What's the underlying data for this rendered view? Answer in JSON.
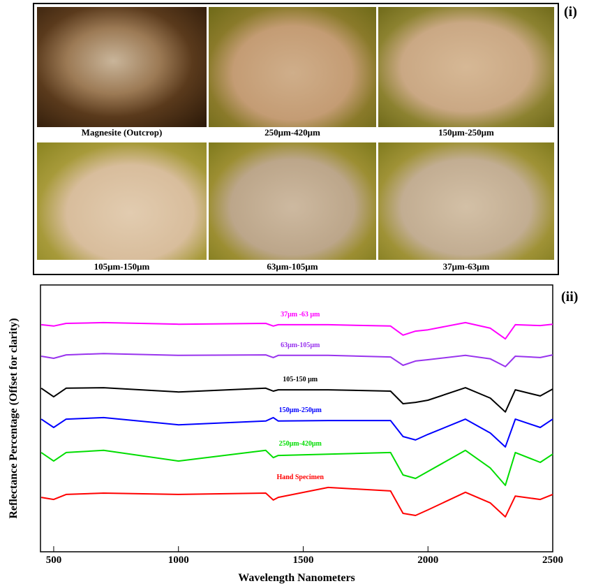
{
  "panel_labels": [
    "(i)",
    "(ii)"
  ],
  "photos": [
    {
      "caption": "Magnesite (Outcrop)"
    },
    {
      "caption": "250μm-420μm"
    },
    {
      "caption": "150μm-250μm"
    },
    {
      "caption": "105μm-150μm"
    },
    {
      "caption": "63μm-105μm"
    },
    {
      "caption": "37μm-63μm"
    }
  ],
  "chart_data": {
    "type": "line",
    "x_label": "Wavelength Nanometers",
    "y_label": "Reflectance Percentage (Offset for clarity)",
    "x": [
      450,
      500,
      550,
      700,
      1000,
      1350,
      1380,
      1400,
      1600,
      1850,
      1900,
      1950,
      2000,
      2150,
      2250,
      2310,
      2350,
      2450,
      2500
    ],
    "xlim": [
      447,
      2500
    ],
    "xticks": [
      500,
      1000,
      1500,
      2000,
      2500
    ],
    "ylim": [
      0,
      100
    ],
    "series": [
      {
        "name": "37μm -63 μm",
        "color": "#ff00ff",
        "values": [
          85.1,
          84.6,
          85.6,
          85.9,
          85.3,
          85.6,
          84.6,
          85.1,
          85.1,
          84.6,
          81.2,
          82.7,
          83.2,
          85.9,
          83.8,
          79.8,
          85.1,
          84.8,
          85.3
        ]
      },
      {
        "name": "63μm-105μm",
        "color": "#9933ee",
        "values": [
          73.3,
          72.5,
          73.8,
          74.3,
          73.6,
          73.8,
          72.8,
          73.6,
          73.6,
          73.0,
          69.9,
          71.5,
          72.0,
          73.6,
          72.3,
          69.4,
          73.3,
          72.8,
          73.8
        ]
      },
      {
        "name": "105-150 μm",
        "color": "#000000",
        "values": [
          61.3,
          58.1,
          61.3,
          61.5,
          59.9,
          61.3,
          60.2,
          60.7,
          60.7,
          60.2,
          55.5,
          56.0,
          56.8,
          61.5,
          57.6,
          52.4,
          60.7,
          58.4,
          61.0
        ]
      },
      {
        "name": "150μm-250μm",
        "color": "#0000ff",
        "values": [
          49.7,
          46.6,
          49.7,
          50.3,
          47.6,
          49.0,
          50.3,
          49.0,
          49.2,
          49.2,
          43.2,
          41.9,
          44.0,
          49.7,
          44.5,
          39.3,
          49.7,
          46.6,
          49.7
        ]
      },
      {
        "name": "250μm-420μm",
        "color": "#00dd00",
        "values": [
          37.2,
          34.0,
          37.2,
          38.0,
          34.0,
          38.0,
          35.3,
          36.1,
          36.6,
          37.2,
          28.8,
          27.5,
          30.1,
          38.0,
          31.4,
          24.9,
          37.2,
          33.5,
          36.6
        ]
      },
      {
        "name": "Hand Specimen",
        "color": "#ff0000",
        "values": [
          20.4,
          19.6,
          21.5,
          22.0,
          21.5,
          22.0,
          19.4,
          20.4,
          24.1,
          22.8,
          14.4,
          13.6,
          15.7,
          22.3,
          18.3,
          13.1,
          20.9,
          19.6,
          21.5
        ]
      }
    ]
  }
}
